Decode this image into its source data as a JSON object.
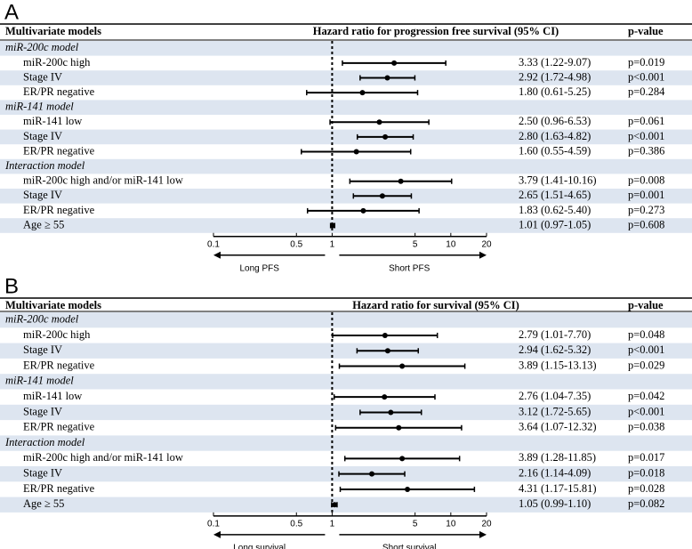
{
  "chart_data": [
    {
      "type": "forest",
      "panel": "A",
      "columns": [
        "Multivariate models",
        "Hazard ratio for progression free survival (95% CI)",
        "p-value"
      ],
      "xlim": [
        0.1,
        20
      ],
      "xticks": [
        0.1,
        0.5,
        1,
        5,
        10,
        20
      ],
      "log_x": true,
      "reference_line": 1,
      "axis_left_label": "Long PFS",
      "axis_right_label": "Short PFS",
      "color": "#000000",
      "shade_color": "#dde5f0",
      "groups": [
        {
          "name": "miR-200c model",
          "categories": [
            "miR-200c high",
            "Stage IV",
            "ER/PR negative"
          ],
          "values": [
            3.33,
            2.92,
            1.8
          ],
          "lower": [
            1.22,
            1.72,
            0.61
          ],
          "upper": [
            9.07,
            4.98,
            5.25
          ],
          "value_labels": [
            "3.33 (1.22-9.07)",
            "2.92 (1.72-4.98)",
            "1.80 (0.61-5.25)"
          ],
          "p_labels": [
            "p=0.019",
            "p<0.001",
            "p=0.284"
          ]
        },
        {
          "name": "miR-141 model",
          "categories": [
            "miR-141 low",
            "Stage IV",
            "ER/PR negative"
          ],
          "values": [
            2.5,
            2.8,
            1.6
          ],
          "lower": [
            0.96,
            1.63,
            0.55
          ],
          "upper": [
            6.53,
            4.82,
            4.59
          ],
          "value_labels": [
            "2.50 (0.96-6.53)",
            "2.80 (1.63-4.82)",
            "1.60 (0.55-4.59)"
          ],
          "p_labels": [
            "p=0.061",
            "p<0.001",
            "p=0.386"
          ]
        },
        {
          "name": "Interaction model",
          "categories": [
            "miR-200c high and/or miR-141 low",
            "Stage IV",
            "ER/PR negative",
            "Age ≥ 55"
          ],
          "values": [
            3.79,
            2.65,
            1.83,
            1.01
          ],
          "lower": [
            1.41,
            1.51,
            0.62,
            0.97
          ],
          "upper": [
            10.16,
            4.65,
            5.4,
            1.05
          ],
          "value_labels": [
            "3.79 (1.41-10.16)",
            "2.65 (1.51-4.65)",
            "1.83 (0.62-5.40)",
            "1.01 (0.97-1.05)"
          ],
          "p_labels": [
            "p=0.008",
            "p=0.001",
            "p=0.273",
            "p=0.608"
          ]
        }
      ]
    },
    {
      "type": "forest",
      "panel": "B",
      "columns": [
        "Multivariate models",
        "Hazard ratio for survival (95% CI)",
        "p-value"
      ],
      "xlim": [
        0.1,
        20
      ],
      "xticks": [
        0.1,
        0.5,
        1,
        5,
        10,
        20
      ],
      "log_x": true,
      "reference_line": 1,
      "axis_left_label": "Long survival",
      "axis_right_label": "Short survival",
      "color": "#000000",
      "shade_color": "#dde5f0",
      "groups": [
        {
          "name": "miR-200c model",
          "categories": [
            "miR-200c high",
            "Stage IV",
            "ER/PR negative"
          ],
          "values": [
            2.79,
            2.94,
            3.89
          ],
          "lower": [
            1.01,
            1.62,
            1.15
          ],
          "upper": [
            7.7,
            5.32,
            13.13
          ],
          "value_labels": [
            "2.79 (1.01-7.70)",
            "2.94 (1.62-5.32)",
            "3.89 (1.15-13.13)"
          ],
          "p_labels": [
            "p=0.048",
            "p<0.001",
            "p=0.029"
          ]
        },
        {
          "name": "miR-141 model",
          "categories": [
            "miR-141 low",
            "Stage IV",
            "ER/PR negative"
          ],
          "values": [
            2.76,
            3.12,
            3.64
          ],
          "lower": [
            1.04,
            1.72,
            1.07
          ],
          "upper": [
            7.35,
            5.65,
            12.32
          ],
          "value_labels": [
            "2.76 (1.04-7.35)",
            "3.12 (1.72-5.65)",
            "3.64 (1.07-12.32)"
          ],
          "p_labels": [
            "p=0.042",
            "p<0.001",
            "p=0.038"
          ]
        },
        {
          "name": "Interaction model",
          "categories": [
            "miR-200c high and/or miR-141 low",
            "Stage IV",
            "ER/PR negative",
            "Age ≥ 55"
          ],
          "values": [
            3.89,
            2.16,
            4.31,
            1.05
          ],
          "lower": [
            1.28,
            1.14,
            1.17,
            0.99
          ],
          "upper": [
            11.85,
            4.09,
            15.81,
            1.1
          ],
          "value_labels": [
            "3.89 (1.28-11.85)",
            "2.16 (1.14-4.09)",
            "4.31 (1.17-15.81)",
            "1.05 (0.99-1.10)"
          ],
          "p_labels": [
            "p=0.017",
            "p=0.018",
            "p=0.028",
            "p=0.082"
          ]
        }
      ]
    }
  ]
}
